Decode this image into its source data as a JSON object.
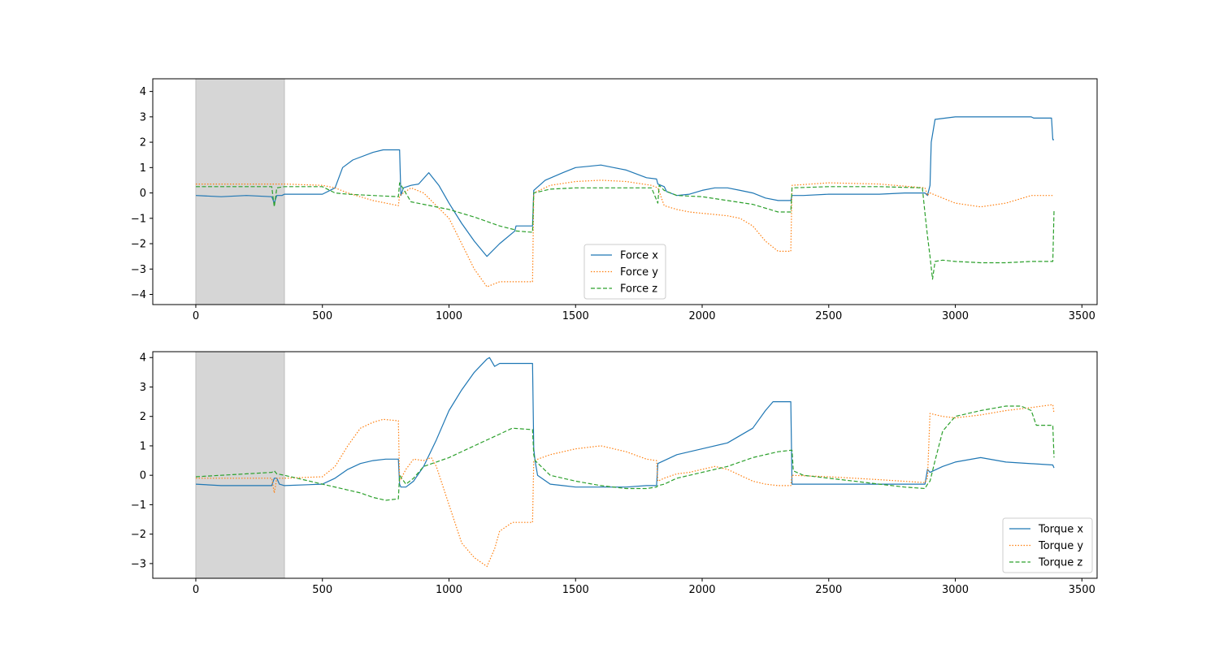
{
  "chart_data": [
    {
      "type": "line",
      "title": "",
      "xlabel": "",
      "ylabel": "",
      "xlim": [
        -170,
        3560
      ],
      "ylim": [
        -4.4,
        4.5
      ],
      "xticks": [
        0,
        500,
        1000,
        1500,
        2000,
        2500,
        3000,
        3500
      ],
      "yticks": [
        -4,
        -3,
        -2,
        -1,
        0,
        1,
        2,
        3,
        4
      ],
      "grid": false,
      "legend": "lower-center",
      "shaded_region": {
        "x0": 0,
        "x1": 350,
        "color": "#d6d6d6"
      },
      "series": [
        {
          "name": "Force x",
          "color": "#1f77b4",
          "style": "solid",
          "x": [
            0,
            100,
            200,
            300,
            310,
            320,
            340,
            350,
            500,
            550,
            580,
            620,
            700,
            740,
            800,
            805,
            810,
            820,
            850,
            880,
            920,
            960,
            1000,
            1050,
            1100,
            1150,
            1200,
            1260,
            1265,
            1330,
            1335,
            1380,
            1450,
            1500,
            1550,
            1600,
            1650,
            1700,
            1780,
            1820,
            1825,
            1850,
            1860,
            1900,
            1950,
            2000,
            2050,
            2100,
            2150,
            2200,
            2250,
            2300,
            2350,
            2355,
            2400,
            2500,
            2600,
            2700,
            2800,
            2880,
            2890,
            2900,
            2905,
            2920,
            3000,
            3100,
            3200,
            3300,
            3310,
            3380,
            3385,
            3390
          ],
          "y": [
            -0.1,
            -0.15,
            -0.1,
            -0.15,
            -0.4,
            -0.1,
            -0.1,
            -0.05,
            -0.05,
            0.2,
            1.0,
            1.3,
            1.6,
            1.7,
            1.7,
            1.7,
            -0.1,
            0.2,
            0.3,
            0.35,
            0.8,
            0.3,
            -0.4,
            -1.2,
            -1.9,
            -2.5,
            -2.0,
            -1.5,
            -1.3,
            -1.3,
            0.1,
            0.5,
            0.8,
            1.0,
            1.05,
            1.1,
            1.0,
            0.9,
            0.6,
            0.55,
            0.35,
            0.25,
            0.05,
            -0.1,
            -0.05,
            0.1,
            0.2,
            0.2,
            0.1,
            0.0,
            -0.2,
            -0.3,
            -0.3,
            -0.1,
            -0.1,
            -0.05,
            -0.05,
            -0.05,
            0.0,
            0.0,
            -0.1,
            0.3,
            2.0,
            2.9,
            3.0,
            3.0,
            3.0,
            3.0,
            2.95,
            2.95,
            2.1,
            2.1
          ]
        },
        {
          "name": "Force y",
          "color": "#ff7f0e",
          "style": "dotted",
          "x": [
            0,
            100,
            200,
            300,
            350,
            500,
            550,
            600,
            700,
            800,
            805,
            850,
            900,
            950,
            1000,
            1050,
            1100,
            1150,
            1200,
            1260,
            1265,
            1330,
            1335,
            1400,
            1500,
            1600,
            1700,
            1800,
            1825,
            1850,
            1900,
            1950,
            2000,
            2050,
            2100,
            2150,
            2200,
            2250,
            2300,
            2340,
            2350,
            2355,
            2500,
            2700,
            2880,
            2890,
            2900,
            3000,
            3100,
            3200,
            3300,
            3385,
            3390
          ],
          "y": [
            0.35,
            0.35,
            0.35,
            0.35,
            0.35,
            0.3,
            0.2,
            0.0,
            -0.3,
            -0.5,
            -0.1,
            0.2,
            0.0,
            -0.5,
            -1.0,
            -2.0,
            -3.0,
            -3.7,
            -3.5,
            -3.5,
            -3.5,
            -3.5,
            0.0,
            0.3,
            0.45,
            0.5,
            0.45,
            0.3,
            0.2,
            -0.5,
            -0.65,
            -0.75,
            -0.8,
            -0.85,
            -0.9,
            -1.0,
            -1.3,
            -1.9,
            -2.3,
            -2.3,
            -2.3,
            0.3,
            0.4,
            0.35,
            0.2,
            -0.1,
            0.0,
            -0.4,
            -0.55,
            -0.4,
            -0.1,
            -0.1,
            -0.1
          ]
        },
        {
          "name": "Force z",
          "color": "#2ca02c",
          "style": "dashed",
          "x": [
            0,
            100,
            200,
            300,
            310,
            320,
            350,
            500,
            550,
            600,
            700,
            800,
            805,
            850,
            900,
            1000,
            1100,
            1200,
            1260,
            1265,
            1330,
            1335,
            1400,
            1500,
            1600,
            1700,
            1800,
            1825,
            1830,
            1850,
            1900,
            2000,
            2100,
            2200,
            2300,
            2350,
            2355,
            2500,
            2700,
            2870,
            2880,
            2890,
            2900,
            2910,
            2920,
            2950,
            3000,
            3100,
            3200,
            3300,
            3310,
            3385,
            3390
          ],
          "y": [
            0.25,
            0.25,
            0.25,
            0.25,
            -0.55,
            0.2,
            0.25,
            0.25,
            0.0,
            -0.05,
            -0.1,
            -0.15,
            0.4,
            -0.35,
            -0.45,
            -0.65,
            -0.95,
            -1.3,
            -1.45,
            -1.5,
            -1.55,
            0.0,
            0.15,
            0.2,
            0.2,
            0.2,
            0.2,
            -0.4,
            0.3,
            0.1,
            -0.1,
            -0.15,
            -0.3,
            -0.45,
            -0.75,
            -0.75,
            0.2,
            0.25,
            0.25,
            0.2,
            -0.8,
            -1.7,
            -2.5,
            -3.4,
            -2.7,
            -2.65,
            -2.7,
            -2.75,
            -2.75,
            -2.7,
            -2.7,
            -2.7,
            -0.7
          ]
        }
      ]
    },
    {
      "type": "line",
      "title": "",
      "xlabel": "",
      "ylabel": "",
      "xlim": [
        -170,
        3560
      ],
      "ylim": [
        -3.5,
        4.2
      ],
      "xticks": [
        0,
        500,
        1000,
        1500,
        2000,
        2500,
        3000,
        3500
      ],
      "yticks": [
        -3,
        -2,
        -1,
        0,
        1,
        2,
        3,
        4
      ],
      "grid": false,
      "legend": "lower-right",
      "shaded_region": {
        "x0": 0,
        "x1": 350,
        "color": "#d6d6d6"
      },
      "series": [
        {
          "name": "Torque x",
          "color": "#1f77b4",
          "style": "solid",
          "x": [
            0,
            100,
            200,
            300,
            310,
            320,
            330,
            350,
            500,
            550,
            600,
            650,
            700,
            750,
            800,
            805,
            810,
            830,
            860,
            900,
            950,
            1000,
            1050,
            1100,
            1150,
            1160,
            1180,
            1200,
            1250,
            1330,
            1335,
            1340,
            1350,
            1400,
            1450,
            1500,
            1600,
            1700,
            1780,
            1820,
            1825,
            1850,
            1900,
            1950,
            2000,
            2100,
            2200,
            2250,
            2280,
            2350,
            2355,
            2500,
            2700,
            2800,
            2880,
            2890,
            2900,
            2950,
            3000,
            3100,
            3200,
            3385,
            3390
          ],
          "y": [
            -0.3,
            -0.35,
            -0.35,
            -0.35,
            -0.1,
            -0.1,
            -0.3,
            -0.35,
            -0.3,
            -0.1,
            0.2,
            0.4,
            0.5,
            0.55,
            0.55,
            -0.3,
            -0.4,
            -0.4,
            -0.2,
            0.3,
            1.2,
            2.2,
            2.9,
            3.5,
            3.95,
            4.0,
            3.7,
            3.8,
            3.8,
            3.8,
            0.9,
            0.5,
            0.0,
            -0.3,
            -0.35,
            -0.4,
            -0.4,
            -0.4,
            -0.35,
            -0.35,
            0.4,
            0.5,
            0.7,
            0.8,
            0.9,
            1.1,
            1.6,
            2.2,
            2.5,
            2.5,
            -0.3,
            -0.3,
            -0.3,
            -0.3,
            -0.3,
            0.2,
            0.1,
            0.3,
            0.45,
            0.6,
            0.45,
            0.35,
            0.25
          ]
        },
        {
          "name": "Torque y",
          "color": "#ff7f0e",
          "style": "dotted",
          "x": [
            0,
            100,
            200,
            300,
            310,
            320,
            350,
            500,
            550,
            600,
            650,
            700,
            740,
            800,
            805,
            830,
            860,
            900,
            930,
            950,
            1000,
            1050,
            1100,
            1150,
            1180,
            1200,
            1250,
            1330,
            1335,
            1400,
            1500,
            1600,
            1700,
            1780,
            1820,
            1825,
            1850,
            1900,
            1950,
            2000,
            2050,
            2100,
            2150,
            2200,
            2250,
            2300,
            2350,
            2355,
            2500,
            2700,
            2880,
            2890,
            2900,
            2950,
            3000,
            3100,
            3200,
            3300,
            3385,
            3390
          ],
          "y": [
            -0.1,
            -0.1,
            -0.1,
            -0.1,
            -0.6,
            -0.1,
            -0.1,
            -0.05,
            0.3,
            1.0,
            1.6,
            1.8,
            1.9,
            1.85,
            -0.2,
            0.2,
            0.55,
            0.5,
            0.6,
            0.3,
            -1.0,
            -2.3,
            -2.8,
            -3.1,
            -2.5,
            -1.9,
            -1.6,
            -1.6,
            0.5,
            0.7,
            0.9,
            1.0,
            0.8,
            0.55,
            0.5,
            -0.2,
            -0.1,
            0.05,
            0.1,
            0.2,
            0.3,
            0.2,
            0.0,
            -0.2,
            -0.3,
            -0.35,
            -0.35,
            0.0,
            -0.05,
            -0.15,
            -0.25,
            -0.1,
            2.1,
            2.0,
            1.95,
            2.05,
            2.2,
            2.3,
            2.4,
            2.1
          ]
        },
        {
          "name": "Torque z",
          "color": "#2ca02c",
          "style": "dashed",
          "x": [
            0,
            100,
            200,
            300,
            310,
            320,
            350,
            400,
            500,
            600,
            650,
            700,
            750,
            800,
            805,
            830,
            860,
            900,
            950,
            1000,
            1100,
            1200,
            1250,
            1330,
            1335,
            1340,
            1400,
            1500,
            1600,
            1700,
            1780,
            1820,
            1825,
            1850,
            1900,
            2000,
            2100,
            2200,
            2300,
            2350,
            2355,
            2360,
            2400,
            2500,
            2600,
            2700,
            2800,
            2880,
            2890,
            2900,
            2920,
            2950,
            3000,
            3100,
            3200,
            3260,
            3300,
            3320,
            3385,
            3390
          ],
          "y": [
            -0.05,
            0.0,
            0.05,
            0.1,
            0.15,
            0.05,
            0.0,
            -0.1,
            -0.3,
            -0.5,
            -0.6,
            -0.75,
            -0.85,
            -0.8,
            0.0,
            -0.3,
            -0.1,
            0.3,
            0.45,
            0.6,
            1.0,
            1.4,
            1.6,
            1.55,
            0.7,
            0.5,
            0.0,
            -0.2,
            -0.35,
            -0.45,
            -0.45,
            -0.4,
            -0.35,
            -0.3,
            -0.1,
            0.1,
            0.3,
            0.6,
            0.8,
            0.85,
            0.85,
            0.15,
            0.0,
            -0.1,
            -0.2,
            -0.3,
            -0.4,
            -0.45,
            -0.3,
            -0.2,
            0.5,
            1.5,
            2.0,
            2.2,
            2.35,
            2.35,
            2.2,
            1.7,
            1.7,
            0.6
          ]
        }
      ]
    }
  ]
}
